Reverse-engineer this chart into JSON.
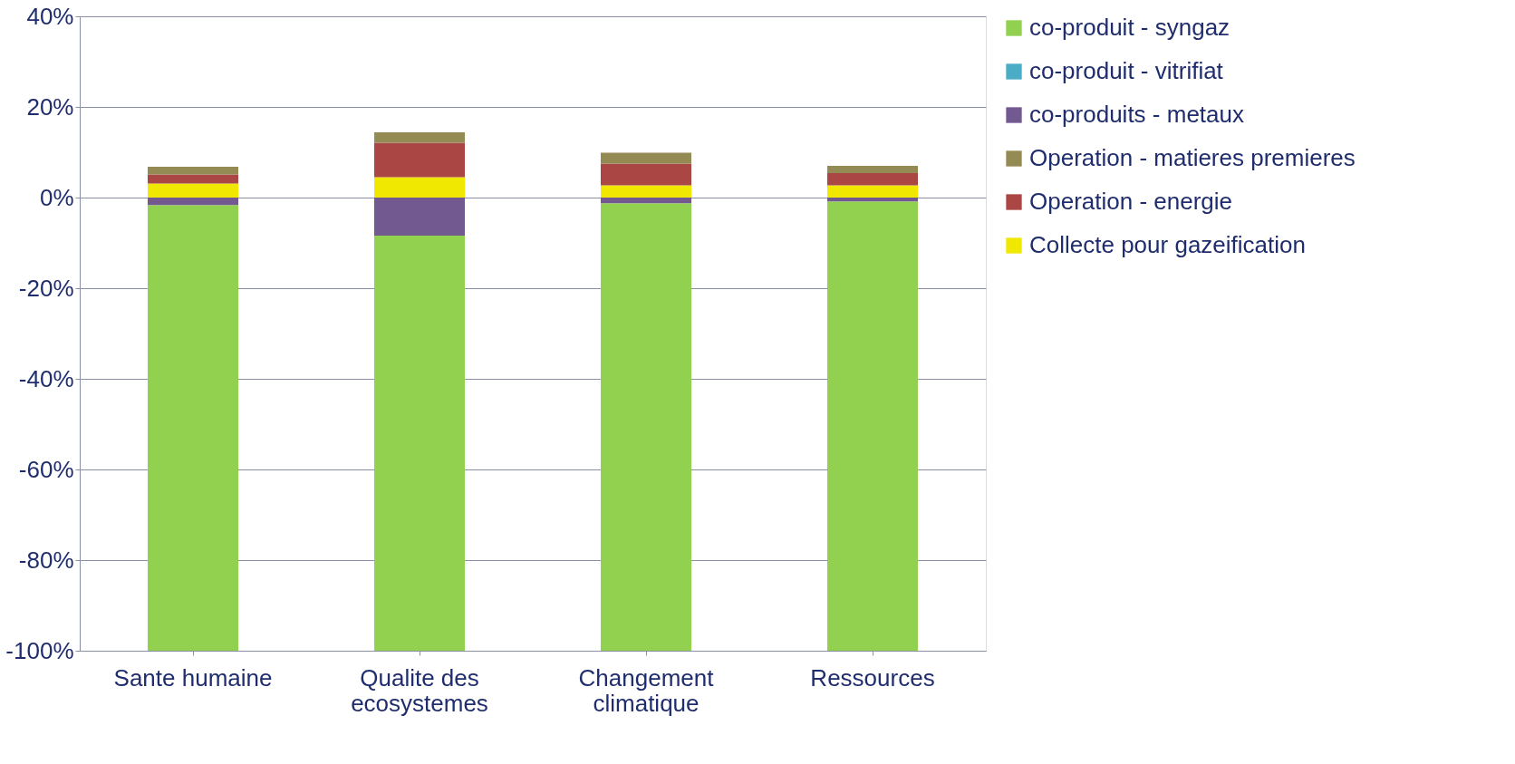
{
  "chart_data": {
    "type": "bar",
    "stacked": true,
    "categories": [
      "Sante humaine",
      "Qualite des ecosystemes",
      "Changement climatique",
      "Ressources"
    ],
    "series": [
      {
        "name": "Collecte pour gazeification",
        "color": "#f0e800",
        "values": [
          3.1,
          4.5,
          2.7,
          2.7
        ]
      },
      {
        "name": "Operation - energie",
        "color": "#aa4644",
        "values": [
          2.0,
          7.6,
          4.8,
          2.7
        ]
      },
      {
        "name": "Operation - matieres premieres",
        "color": "#948a54",
        "values": [
          1.7,
          2.3,
          2.4,
          1.6
        ]
      },
      {
        "name": " co-produits - metaux",
        "color": "#725990",
        "values": [
          -1.7,
          -8.4,
          -1.3,
          -0.9
        ]
      },
      {
        "name": "co-produit - vitrifiat",
        "color": "#4bacc6",
        "values": [
          0,
          0,
          0,
          0
        ]
      },
      {
        "name": "co-produit - syngaz",
        "color": "#92d050",
        "values": [
          -98.3,
          -91.6,
          -98.7,
          -99.1
        ]
      }
    ],
    "ylim": [
      -100,
      40
    ],
    "yticks": [
      {
        "value": -100,
        "label": "-100%"
      },
      {
        "value": -80,
        "label": "-80%"
      },
      {
        "value": -60,
        "label": "-60%"
      },
      {
        "value": -40,
        "label": "-40%"
      },
      {
        "value": -20,
        "label": "-20%"
      },
      {
        "value": 0,
        "label": "0%"
      },
      {
        "value": 20,
        "label": "20%"
      },
      {
        "value": 40,
        "label": "40%"
      }
    ],
    "grid": "y",
    "legend": "right"
  }
}
